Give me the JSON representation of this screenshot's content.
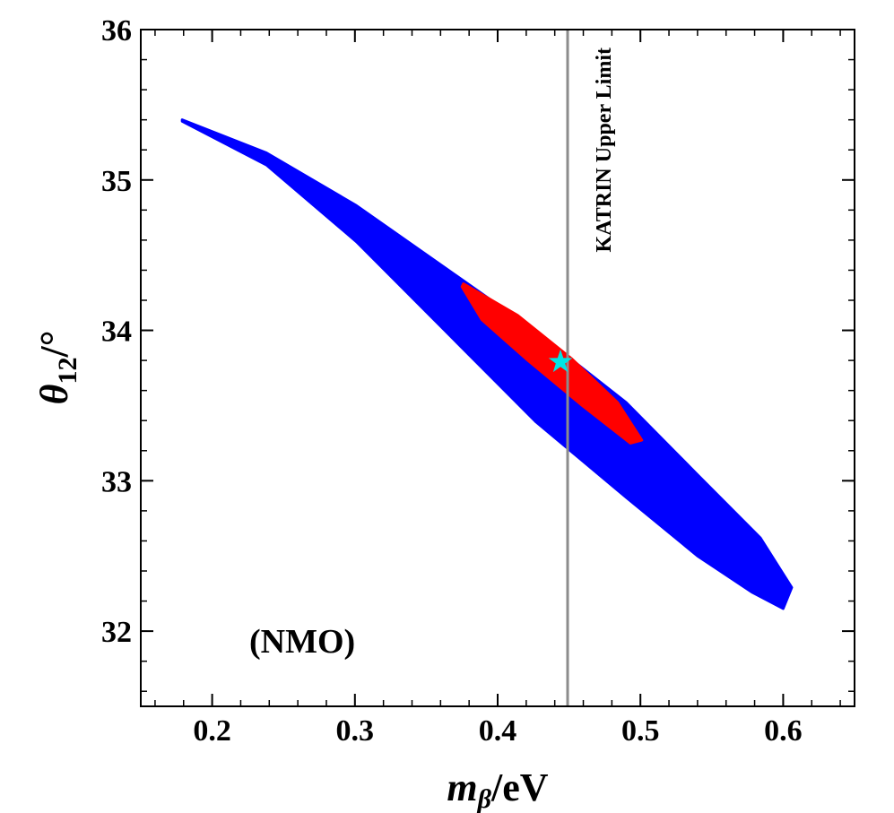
{
  "chart_data": {
    "type": "scatter",
    "xlabel": {
      "main": "m",
      "sub": "β",
      "tail": "/eV"
    },
    "ylabel": {
      "main": "θ",
      "sub": "12",
      "tail": "/°"
    },
    "annotation": "(NMO)",
    "xlim": [
      0.15,
      0.65
    ],
    "ylim": [
      31.5,
      36
    ],
    "xticks": [
      0.2,
      0.3,
      0.4,
      0.5,
      0.6
    ],
    "yticks": [
      32,
      33,
      34,
      35,
      36
    ],
    "series": [
      {
        "color": "#0000ff",
        "x": [
          0.179,
          0.238,
          0.301,
          0.364,
          0.427,
          0.49,
          0.54,
          0.584,
          0.606,
          0.6,
          0.578,
          0.54,
          0.49,
          0.427,
          0.364,
          0.301,
          0.238,
          0.179
        ],
        "y": [
          35.4,
          35.18,
          34.83,
          34.41,
          33.99,
          33.52,
          33.04,
          32.62,
          32.29,
          32.15,
          32.26,
          32.5,
          32.89,
          33.39,
          33.99,
          34.59,
          35.1,
          35.39
        ]
      },
      {
        "color": "#ff0000",
        "x": [
          0.376,
          0.414,
          0.452,
          0.484,
          0.501,
          0.493,
          0.458,
          0.42,
          0.389,
          0.375
        ],
        "y": [
          34.31,
          34.1,
          33.81,
          33.52,
          33.27,
          33.25,
          33.51,
          33.81,
          34.07,
          34.29
        ]
      }
    ],
    "best_fit": {
      "x": 0.444,
      "y": 33.79,
      "color": "#00e5e5"
    },
    "limit_line": {
      "x": 0.449,
      "label": "KATRIN Upper Limit",
      "color": "#8c8c8c"
    }
  }
}
